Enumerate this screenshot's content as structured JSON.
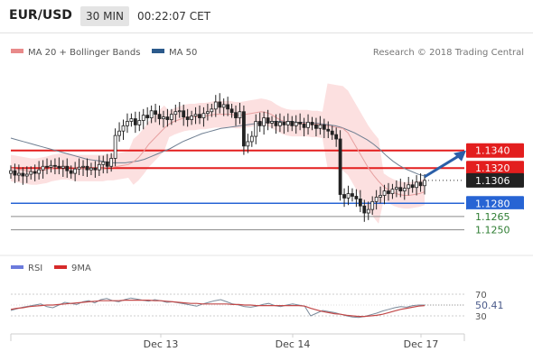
{
  "header": {
    "pair": "EUR/USD",
    "timeframe": "30 MIN",
    "time": "00:22:07 CET"
  },
  "legend_main": [
    {
      "label": "MA 20 + Bollinger Bands",
      "color": "#e88a8a"
    },
    {
      "label": "MA 50",
      "color": "#2c5a8c"
    }
  ],
  "credit": "Research © 2018 Trading Central",
  "legend_rsi": [
    {
      "label": "RSI",
      "color": "#6c7bdc"
    },
    {
      "label": "9MA",
      "color": "#d62a2a"
    }
  ],
  "colors": {
    "resistance": "#e31e1e",
    "support": "#2764d4",
    "arrow": "#2b5fa8",
    "candle": "#222222",
    "band": "#fbdada",
    "rsi_zone": "#cccccc"
  },
  "chart_data": [
    {
      "type": "candlestick",
      "ylim": [
        1.1226,
        1.1437
      ],
      "x_ticks": [
        "Dec 13",
        "Dec 14",
        "Dec 17"
      ],
      "levels": [
        {
          "label": "1.1340",
          "value": 1.134,
          "kind": "resistance",
          "color": "#e31e1e",
          "text_color": "#ffffff"
        },
        {
          "label": "1.1320",
          "value": 1.132,
          "kind": "resistance",
          "color": "#e31e1e",
          "text_color": "#ffffff"
        },
        {
          "label": "1.1306",
          "value": 1.1306,
          "kind": "last",
          "color": "#222222",
          "text_color": "#ffffff"
        },
        {
          "label": "1.1280",
          "value": 1.128,
          "kind": "support",
          "color": "#2764d4",
          "text_color": "#ffffff"
        },
        {
          "label": "1.1265",
          "value": 1.1265,
          "kind": "support",
          "color": "#ffffff",
          "text_color": "#2e7d32"
        },
        {
          "label": "1.1250",
          "value": 1.125,
          "kind": "support",
          "color": "#ffffff",
          "text_color": "#2e7d32"
        }
      ],
      "candle_closes": [
        1.1317,
        1.1312,
        1.1314,
        1.1311,
        1.1313,
        1.1316,
        1.1314,
        1.1318,
        1.1322,
        1.1321,
        1.1323,
        1.1322,
        1.132,
        1.1322,
        1.1317,
        1.1314,
        1.1319,
        1.1321,
        1.1322,
        1.1318,
        1.132,
        1.1318,
        1.1324,
        1.1327,
        1.1322,
        1.1331,
        1.1357,
        1.1362,
        1.1368,
        1.1373,
        1.1376,
        1.1369,
        1.1374,
        1.138,
        1.1377,
        1.1385,
        1.1381,
        1.1376,
        1.1378,
        1.1375,
        1.1381,
        1.1384,
        1.1385,
        1.1378,
        1.1375,
        1.1379,
        1.1381,
        1.1377,
        1.1382,
        1.1384,
        1.1387,
        1.1395,
        1.1389,
        1.1392,
        1.1387,
        1.1383,
        1.1377,
        1.1384,
        1.1345,
        1.135,
        1.1356,
        1.1373,
        1.1368,
        1.1377,
        1.1371,
        1.1373,
        1.1368,
        1.1372,
        1.1369,
        1.1373,
        1.1368,
        1.1372,
        1.137,
        1.1366,
        1.1372,
        1.1369,
        1.1365,
        1.1369,
        1.1364,
        1.1362,
        1.1358,
        1.1353,
        1.129,
        1.1286,
        1.1291,
        1.1288,
        1.1285,
        1.1277,
        1.1269,
        1.1273,
        1.1282,
        1.1287,
        1.1289,
        1.1294,
        1.1291,
        1.1296,
        1.1298,
        1.1294,
        1.1297,
        1.1301,
        1.1298,
        1.1304,
        1.13,
        1.1306
      ],
      "ma20": [
        1.132,
        1.1319,
        1.1318,
        1.1317,
        1.1316,
        1.1316,
        1.1317,
        1.1318,
        1.132,
        1.1321,
        1.1322,
        1.1322,
        1.1321,
        1.132,
        1.132,
        1.132,
        1.132,
        1.132,
        1.132,
        1.1321,
        1.1321,
        1.1322,
        1.1323,
        1.1324,
        1.1327,
        1.1332,
        1.1339,
        1.1347,
        1.1353,
        1.1359,
        1.1365,
        1.137,
        1.1373,
        1.1375,
        1.1377,
        1.1378,
        1.1378,
        1.1379,
        1.1379,
        1.138,
        1.1381,
        1.1381,
        1.1381,
        1.1381,
        1.138,
        1.138,
        1.1381,
        1.1382,
        1.1383,
        1.1384,
        1.1383,
        1.1381,
        1.1377,
        1.1374,
        1.1372,
        1.1371,
        1.1371,
        1.1371,
        1.1371,
        1.137,
        1.137,
        1.1369,
        1.1368,
        1.1367,
        1.1366,
        1.1365,
        1.136,
        1.135,
        1.134,
        1.133,
        1.132,
        1.1312,
        1.1305,
        1.1299,
        1.1295,
        1.1292,
        1.129,
        1.1289,
        1.1289,
        1.129,
        1.1291,
        1.1293
      ],
      "ma50": [
        1.1354,
        1.1352,
        1.135,
        1.1348,
        1.1346,
        1.1344,
        1.1342,
        1.134,
        1.1338,
        1.1336,
        1.1334,
        1.1332,
        1.133,
        1.1329,
        1.1328,
        1.1327,
        1.1326,
        1.1326,
        1.1326,
        1.1327,
        1.1328,
        1.133,
        1.1333,
        1.1336,
        1.1339,
        1.1342,
        1.1346,
        1.135,
        1.1353,
        1.1356,
        1.1359,
        1.1361,
        1.1363,
        1.1365,
        1.1366,
        1.1367,
        1.1368,
        1.1369,
        1.137,
        1.1371,
        1.1372,
        1.1373,
        1.1373,
        1.1373,
        1.1373,
        1.1372,
        1.1372,
        1.1371,
        1.1371,
        1.137,
        1.1369,
        1.1368,
        1.1366,
        1.1363,
        1.136,
        1.1356,
        1.1352,
        1.1347,
        1.1341,
        1.1334,
        1.1328,
        1.1323,
        1.1319,
        1.1316,
        1.1313,
        1.1311
      ],
      "forecast_target": 1.134
    },
    {
      "type": "line",
      "name": "RSI",
      "ylim": [
        0,
        100
      ],
      "y_ticks": [
        70,
        30
      ],
      "last_value_label": "50.41",
      "series": [
        {
          "name": "RSI",
          "values": [
            40,
            43,
            46,
            48,
            50,
            52,
            47,
            45,
            50,
            55,
            53,
            51,
            56,
            58,
            54,
            60,
            62,
            58,
            56,
            60,
            63,
            61,
            59,
            57,
            60,
            58,
            55,
            56,
            54,
            52,
            50,
            48,
            52,
            55,
            58,
            60,
            56,
            52,
            50,
            47,
            46,
            48,
            51,
            53,
            49,
            47,
            50,
            52,
            50,
            48,
            30,
            35,
            40,
            38,
            36,
            33,
            30,
            28,
            27,
            29,
            32,
            35,
            39,
            42,
            45,
            47,
            46,
            49,
            50,
            50
          ]
        },
        {
          "name": "9MA",
          "values": [
            42,
            44,
            45,
            47,
            48,
            49,
            50,
            50,
            51,
            52,
            53,
            54,
            55,
            56,
            57,
            58,
            58,
            58,
            58,
            59,
            59,
            59,
            59,
            59,
            58,
            58,
            57,
            56,
            55,
            54,
            53,
            53,
            52,
            52,
            52,
            52,
            52,
            51,
            51,
            50,
            50,
            49,
            49,
            49,
            49,
            49,
            49,
            49,
            49,
            48,
            44,
            41,
            38,
            36,
            34,
            33,
            31,
            30,
            29,
            29,
            30,
            31,
            33,
            36,
            39,
            42,
            44,
            46,
            48,
            49
          ]
        }
      ]
    }
  ]
}
